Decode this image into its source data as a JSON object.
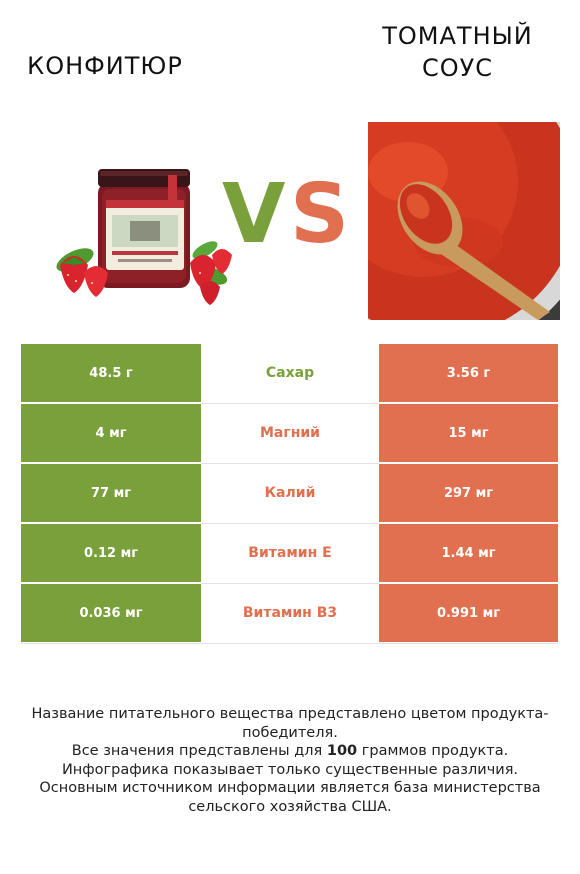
{
  "products": {
    "left": {
      "name": "Конфитюр",
      "color": "#79a03a",
      "image_label": "jam-jar-with-strawberries"
    },
    "right": {
      "name": "Томатный соус",
      "color": "#e0704f",
      "image_label": "tomato-sauce-with-wooden-spoon"
    },
    "vs_left_letter": "V",
    "vs_right_letter": "S"
  },
  "comparison": {
    "rows": [
      {
        "nutrient": "Сахар",
        "left": "48.5 г",
        "right": "3.56 г",
        "winner": "left"
      },
      {
        "nutrient": "Магний",
        "left": "4 мг",
        "right": "15 мг",
        "winner": "right"
      },
      {
        "nutrient": "Калий",
        "left": "77 мг",
        "right": "297 мг",
        "winner": "right"
      },
      {
        "nutrient": "Витамин E",
        "left": "0.12 мг",
        "right": "1.44 мг",
        "winner": "right"
      },
      {
        "nutrient": "Витамин B3",
        "left": "0.036 мг",
        "right": "0.991 мг",
        "winner": "right"
      }
    ]
  },
  "footer": {
    "line1": "Название питательного вещества представлено цветом продукта-победителя.",
    "line2_before": "Все значения представлены для ",
    "line2_bold": "100",
    "line2_after": " граммов продукта.",
    "line3": "Инфографика показывает только существенные различия.",
    "line4": "Основным источником информации является база министерства сельского хозяйства США."
  }
}
